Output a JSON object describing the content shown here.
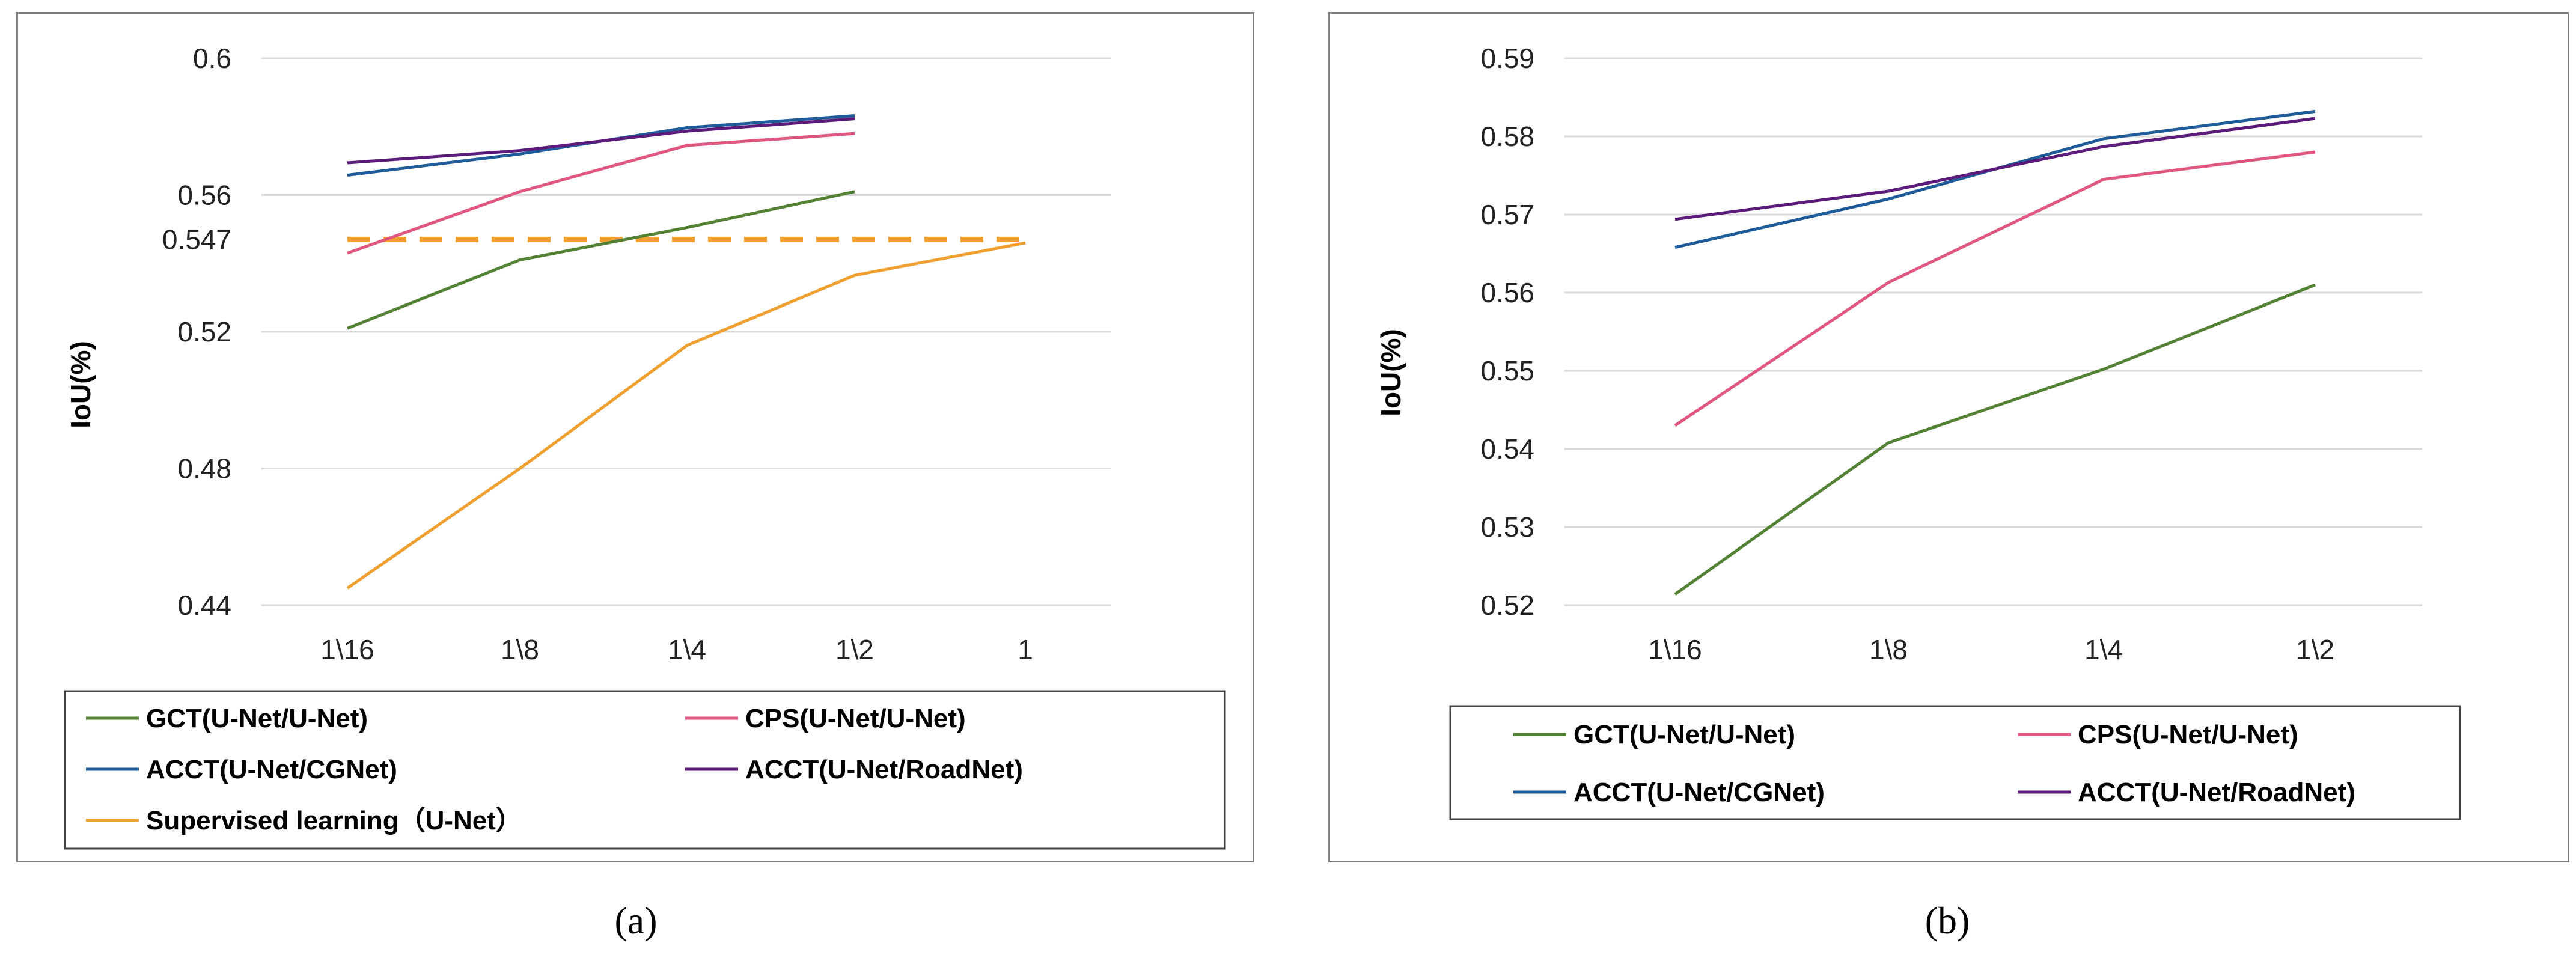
{
  "chart_data": [
    {
      "type": "line",
      "panel_label": "a",
      "ylabel": "IoU(%)",
      "xlabel": "",
      "categories": [
        "1\\16",
        "1\\8",
        "1\\4",
        "1\\2",
        "1"
      ],
      "y_ticks": [
        "0.44",
        "0.48",
        "0.52",
        "0.547",
        "0.56",
        "0.6"
      ],
      "ylim": [
        0.44,
        0.6
      ],
      "grid": true,
      "legend_position": "bottom",
      "series": [
        {
          "name": "GCT(U-Net/U-Net)",
          "color": "#548235",
          "values": [
            0.521,
            0.541,
            0.5505,
            0.561,
            null
          ]
        },
        {
          "name": "CPS(U-Net/U-Net)",
          "color": "#e0577f",
          "values": [
            0.543,
            0.561,
            0.5745,
            0.578,
            null
          ]
        },
        {
          "name": "ACCT(U-Net/CGNet)",
          "color": "#1f5c99",
          "values": [
            0.5658,
            0.572,
            0.5797,
            0.5832,
            null
          ]
        },
        {
          "name": "ACCT(U-Net/RoadNet)",
          "color": "#5c1a7a",
          "values": [
            0.5694,
            0.573,
            0.5787,
            0.5823,
            null
          ]
        },
        {
          "name": "Supervised learning（U-Net）",
          "color": "#f0a030",
          "values": [
            0.445,
            0.48,
            0.516,
            0.5365,
            0.546
          ]
        }
      ],
      "reference_line": {
        "value": 0.547,
        "color": "#f0a030",
        "style": "dashed"
      }
    },
    {
      "type": "line",
      "panel_label": "b",
      "ylabel": "IoU(%)",
      "xlabel": "",
      "categories": [
        "1\\16",
        "1\\8",
        "1\\4",
        "1\\2"
      ],
      "y_ticks": [
        "0.52",
        "0.53",
        "0.54",
        "0.55",
        "0.56",
        "0.57",
        "0.58",
        "0.59"
      ],
      "ylim": [
        0.52,
        0.59
      ],
      "grid": true,
      "legend_position": "bottom",
      "series": [
        {
          "name": "GCT(U-Net/U-Net)",
          "color": "#548235",
          "values": [
            0.5214,
            0.5408,
            0.5502,
            0.561
          ]
        },
        {
          "name": "CPS(U-Net/U-Net)",
          "color": "#e0577f",
          "values": [
            0.543,
            0.5613,
            0.5745,
            0.578
          ]
        },
        {
          "name": "ACCT(U-Net/CGNet)",
          "color": "#1f5c99",
          "values": [
            0.5658,
            0.572,
            0.5797,
            0.5832
          ]
        },
        {
          "name": "ACCT(U-Net/RoadNet)",
          "color": "#5c1a7a",
          "values": [
            0.5694,
            0.573,
            0.5787,
            0.5823
          ]
        }
      ]
    }
  ],
  "captions": {
    "a": "(a)",
    "b": "(b)"
  }
}
